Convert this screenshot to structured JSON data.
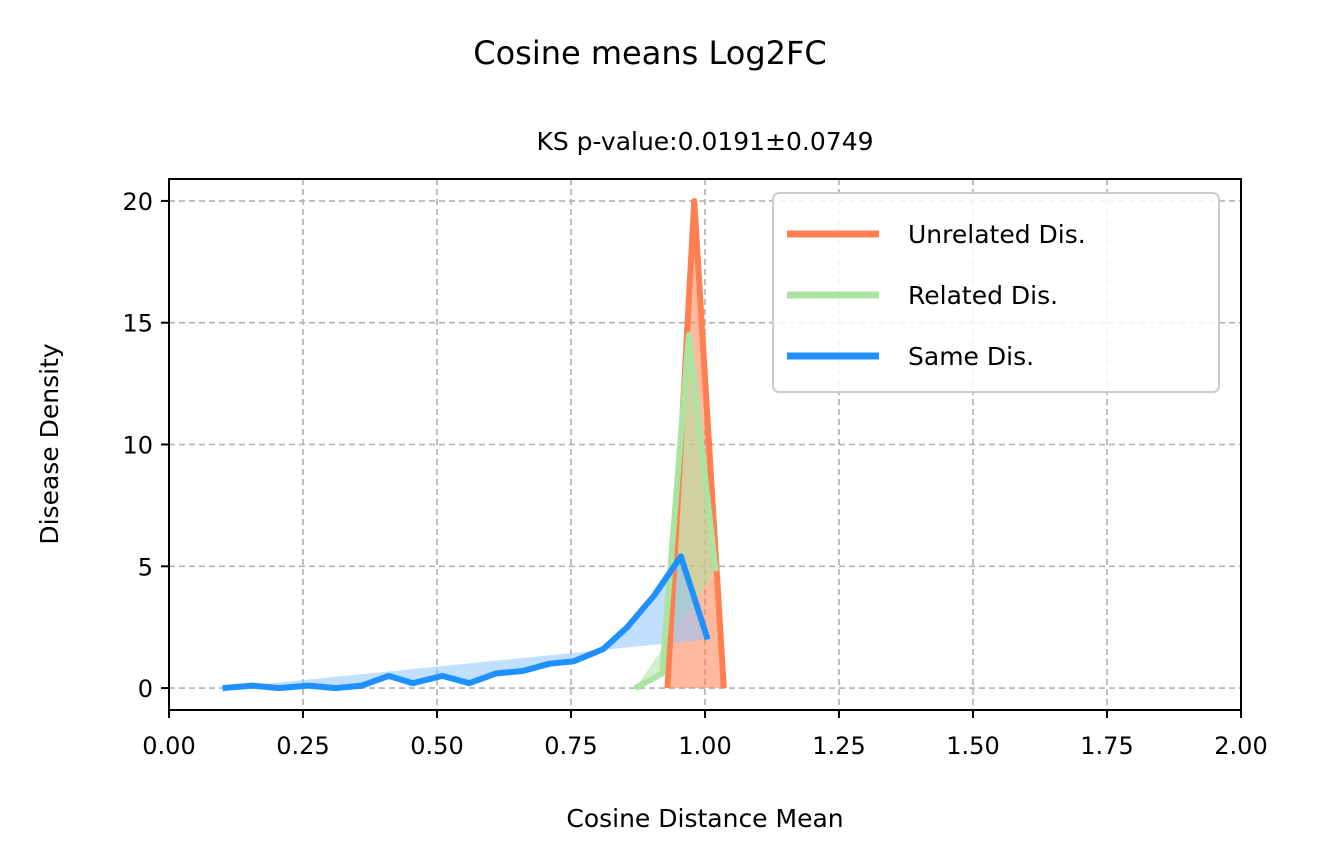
{
  "chart_data": {
    "type": "area",
    "title": "Cosine means Log2FC",
    "subtitle": "KS p-value:0.0191±0.0749",
    "xlabel": "Cosine Distance Mean",
    "ylabel": "Disease Density",
    "xlim": [
      0.0,
      2.0
    ],
    "ylim": [
      -0.9,
      20.9
    ],
    "xticks": [
      "0.00",
      "0.25",
      "0.50",
      "0.75",
      "1.00",
      "1.25",
      "1.50",
      "1.75",
      "2.00"
    ],
    "yticks": [
      "0",
      "5",
      "10",
      "15",
      "20"
    ],
    "grid": true,
    "legend_position": "upper right",
    "series": [
      {
        "name": "Unrelated Dis.",
        "color": "#ff7f50",
        "fill": "#ff7f50",
        "x": [
          0.93,
          0.98,
          1.035
        ],
        "y": [
          0.0,
          20.0,
          0.0
        ]
      },
      {
        "name": "Related Dis.",
        "color": "#abe3a0",
        "fill": "#abe3a0",
        "x": [
          0.87,
          0.92,
          0.97,
          1.02
        ],
        "y": [
          0.0,
          0.6,
          14.5,
          4.8
        ]
      },
      {
        "name": "Same Dis.",
        "color": "#1e90ff",
        "fill": "#8ec4ff",
        "x": [
          0.1,
          0.155,
          0.205,
          0.26,
          0.31,
          0.36,
          0.41,
          0.455,
          0.51,
          0.56,
          0.61,
          0.66,
          0.71,
          0.755,
          0.81,
          0.855,
          0.905,
          0.955,
          1.005
        ],
        "y": [
          0.0,
          0.1,
          0.0,
          0.1,
          0.0,
          0.1,
          0.5,
          0.2,
          0.5,
          0.2,
          0.6,
          0.7,
          1.0,
          1.1,
          1.6,
          2.5,
          3.8,
          5.4,
          2.0
        ]
      }
    ]
  }
}
